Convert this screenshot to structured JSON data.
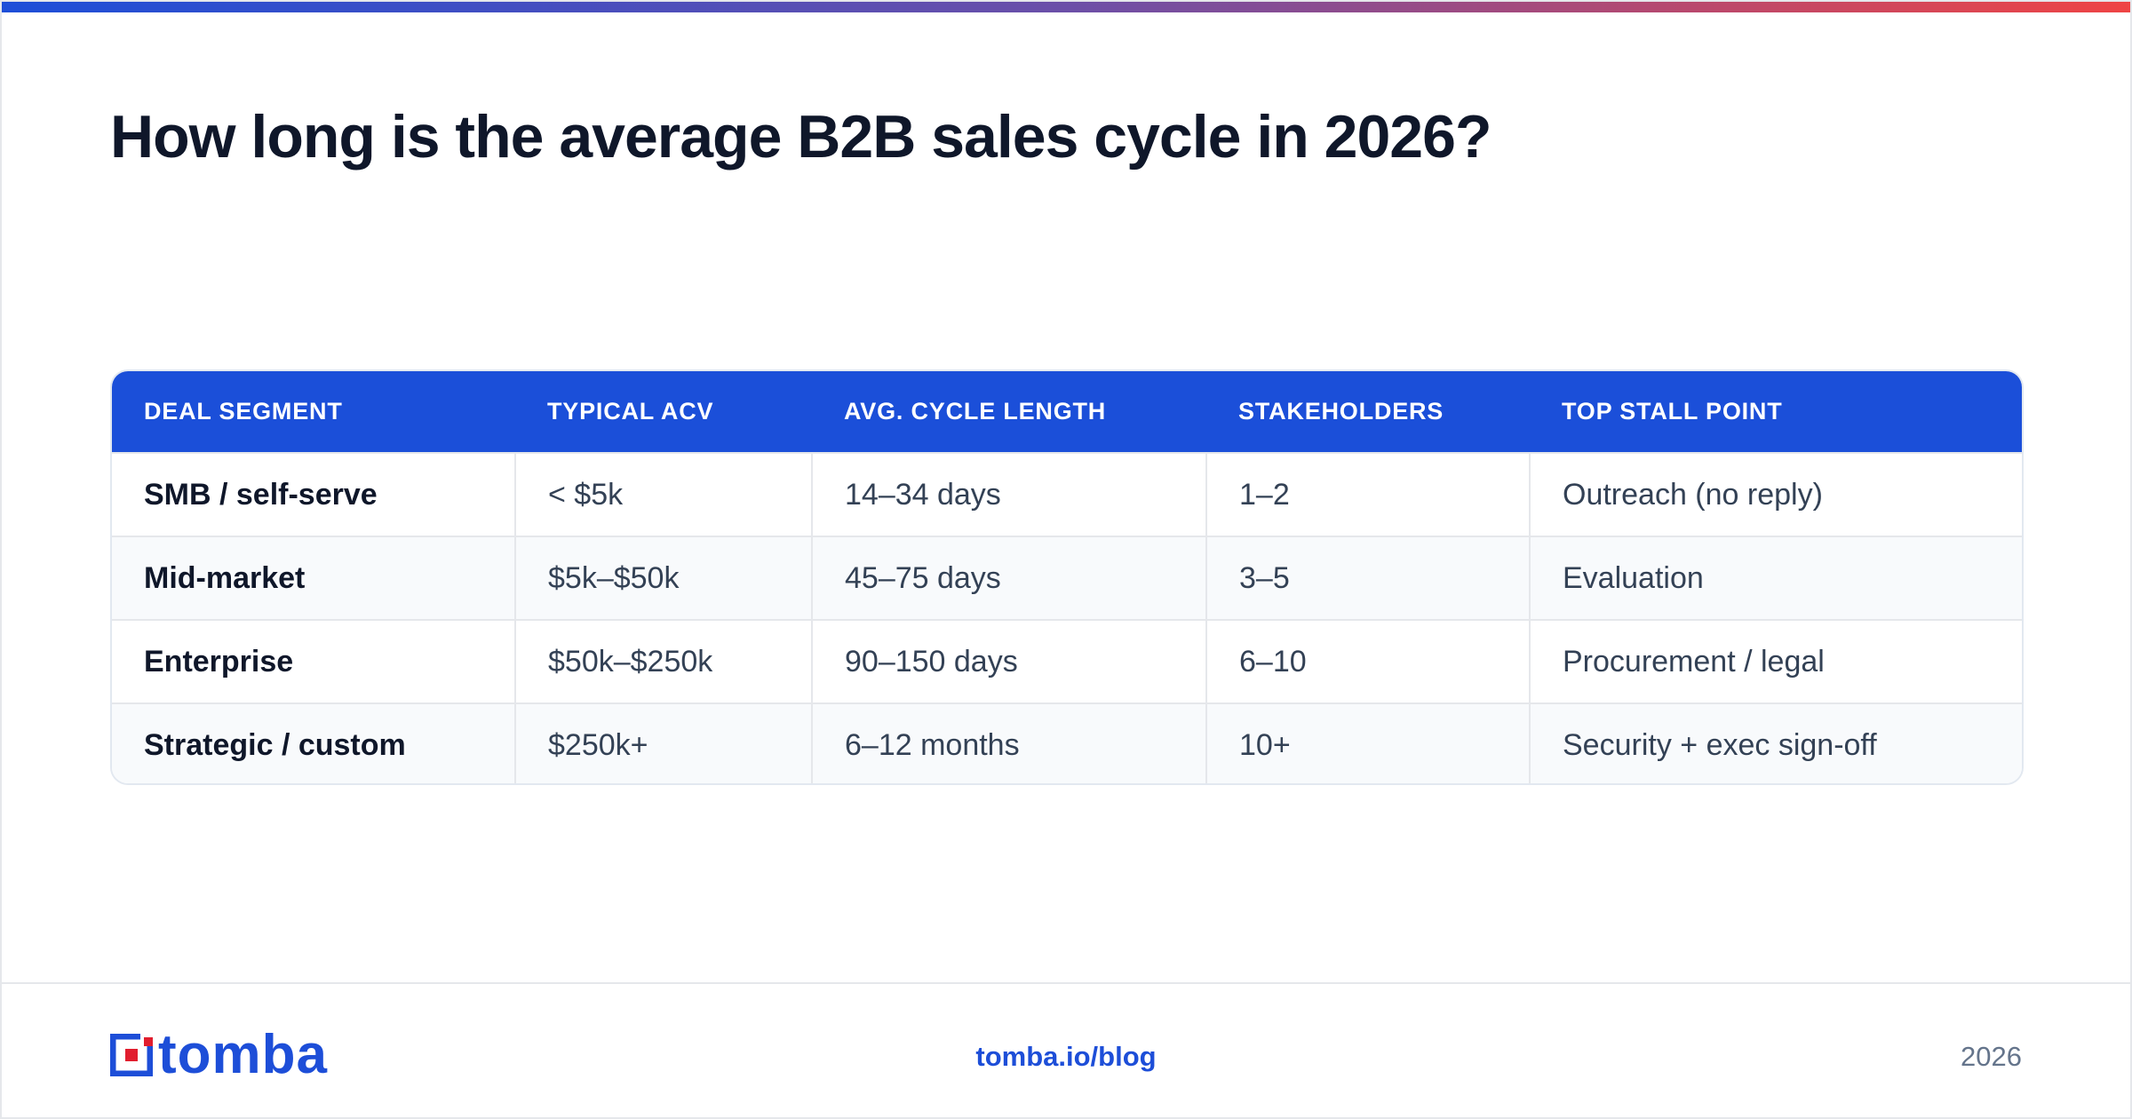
{
  "title": "How long is the average B2B sales cycle in 2026?",
  "table": {
    "headers": [
      "DEAL SEGMENT",
      "TYPICAL ACV",
      "AVG. CYCLE LENGTH",
      "STAKEHOLDERS",
      "TOP STALL POINT"
    ],
    "rows": [
      [
        "SMB / self-serve",
        "< $5k",
        "14–34 days",
        "1–2",
        "Outreach (no reply)"
      ],
      [
        "Mid-market",
        "$5k–$50k",
        "45–75 days",
        "3–5",
        "Evaluation"
      ],
      [
        "Enterprise",
        "$50k–$250k",
        "90–150 days",
        "6–10",
        "Procurement / legal"
      ],
      [
        "Strategic / custom",
        "$250k+",
        "6–12 months",
        "10+",
        "Security + exec sign-off"
      ]
    ]
  },
  "footer": {
    "logo_text": "tomba",
    "logo_icon": "tomba-logo-icon",
    "url": "tomba.io/blog",
    "year": "2026"
  },
  "colors": {
    "accent": "#1b4fd9",
    "logo_red": "#e11d2e",
    "gradient_start": "#1d4ed8",
    "gradient_end": "#ef4444"
  }
}
